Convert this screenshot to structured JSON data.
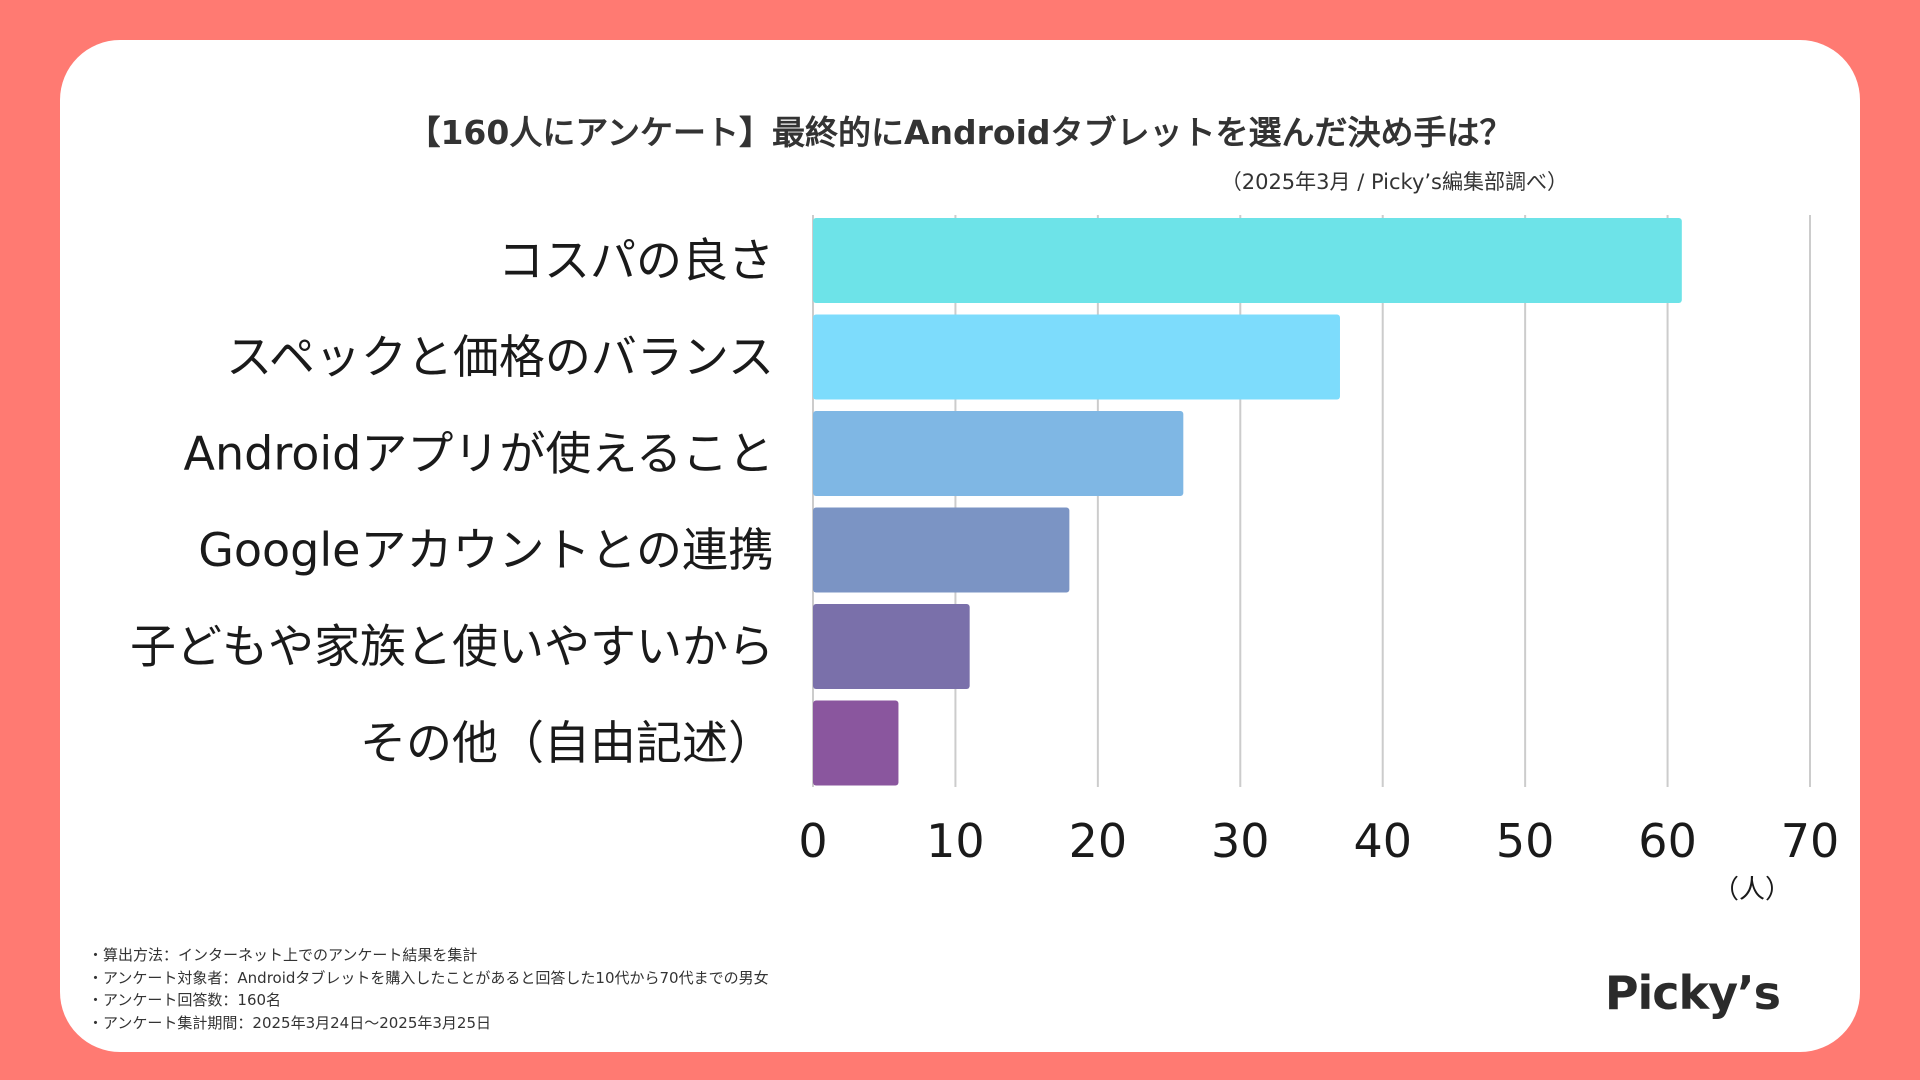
{
  "chart_data": {
    "type": "bar",
    "orientation": "horizontal",
    "title": "【160人にアンケート】最終的にAndroidタブレットを選んだ決め手は？",
    "source": "（2025年3月 / Picky’s編集部調べ）",
    "categories": [
      "コスパの良さ",
      "スペックと価格のバランス",
      "Androidアプリが使えること",
      "Googleアカウントとの連携",
      "子どもや家族と使いやすいから",
      "その他（自由記述）"
    ],
    "values": [
      61,
      37,
      26,
      18,
      11,
      6
    ],
    "colors": [
      "#6de3e8",
      "#7ddcfc",
      "#7fb7e4",
      "#7b94c4",
      "#7a70aa",
      "#8a569e"
    ],
    "xlim": [
      0,
      70
    ],
    "xticks": [
      "0",
      "10",
      "20",
      "30",
      "40",
      "50",
      "60",
      "70"
    ],
    "xunit": "（人）",
    "grid": true,
    "legend": "none"
  },
  "notes": [
    "・算出方法：インターネット上でのアンケート結果を集計",
    "・アンケート対象者：Androidタブレットを購入したことがあると回答した10代から70代までの男女",
    "・アンケート回答数：160名",
    "・アンケート集計期間：2025年3月24日〜2025年3月25日"
  ],
  "brand": "Picky’s",
  "colors": {
    "page_background": "#ff7a72",
    "card_background": "#ffffff",
    "grid": "#cccccc"
  }
}
